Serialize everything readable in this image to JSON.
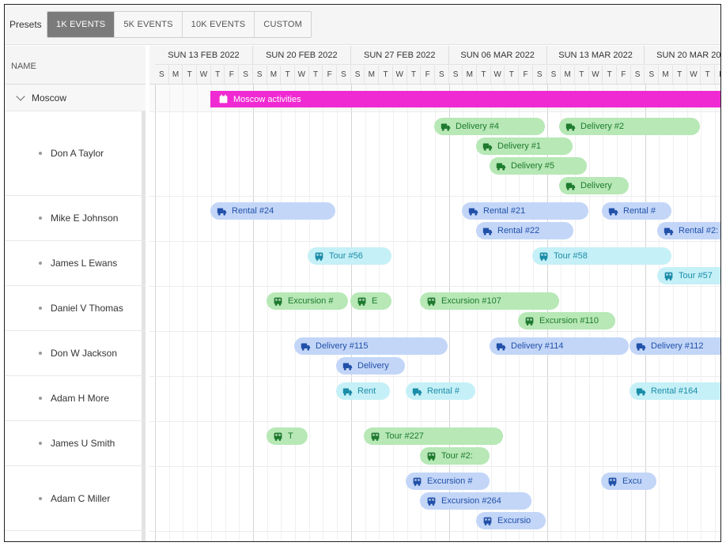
{
  "toolbar": {
    "label": "Presets",
    "presets": [
      "1K EVENTS",
      "5K EVENTS",
      "10K EVENTS",
      "CUSTOM"
    ],
    "active_preset": "1K EVENTS"
  },
  "grid": {
    "name_header": "NAME",
    "weeks": [
      "SUN 13 FEB 2022",
      "SUN 20 FEB 2022",
      "SUN 27 FEB 2022",
      "SUN 06 MAR 2022",
      "SUN 13 MAR 2022",
      "SUN 20 MAR 2022"
    ],
    "day_letters": [
      "S",
      "M",
      "T",
      "W",
      "T",
      "F",
      "S"
    ],
    "group": "Moscow",
    "resources": [
      "Don A Taylor",
      "Mike E Johnson",
      "James L Ewans",
      "Daniel V Thomas",
      "Don W Jackson",
      "Adam H More",
      "James U Smith",
      "Adam C Miller"
    ]
  },
  "colors": {
    "group_event": "#f02ad2",
    "delivery": "#b7e8b6",
    "rental": "#c3d6f8",
    "tour": "#c5f0f7"
  },
  "events": [
    {
      "name": "Moscow activities",
      "icon": "calendar-icon",
      "color": "magenta"
    },
    {
      "name": "Delivery #4",
      "icon": "truck-icon",
      "color": "green"
    },
    {
      "name": "Delivery #2",
      "icon": "truck-icon",
      "color": "green"
    },
    {
      "name": "Delivery #1",
      "icon": "truck-icon",
      "color": "green"
    },
    {
      "name": "Delivery #5",
      "icon": "truck-icon",
      "color": "green"
    },
    {
      "name": "Delivery",
      "icon": "truck-icon",
      "color": "green"
    },
    {
      "name": "Rental #24",
      "icon": "truck-icon",
      "color": "blue"
    },
    {
      "name": "Rental #21",
      "icon": "truck-icon",
      "color": "blue"
    },
    {
      "name": "Rental #",
      "icon": "truck-icon",
      "color": "blue"
    },
    {
      "name": "Rental #22",
      "icon": "truck-icon",
      "color": "blue"
    },
    {
      "name": "Rental #2:",
      "icon": "truck-icon",
      "color": "blue"
    },
    {
      "name": "Tour #56",
      "icon": "bus-icon",
      "color": "cyan"
    },
    {
      "name": "Tour #58",
      "icon": "bus-icon",
      "color": "cyan"
    },
    {
      "name": "Tour #57",
      "icon": "bus-icon",
      "color": "cyan"
    },
    {
      "name": "Excursion #",
      "icon": "bus-icon",
      "color": "green"
    },
    {
      "name": "E",
      "icon": "bus-icon",
      "color": "green"
    },
    {
      "name": "Excursion #107",
      "icon": "bus-icon",
      "color": "green"
    },
    {
      "name": "Excursion #110",
      "icon": "bus-icon",
      "color": "green"
    },
    {
      "name": "Delivery #115",
      "icon": "truck-icon",
      "color": "blue"
    },
    {
      "name": "Delivery #114",
      "icon": "truck-icon",
      "color": "blue"
    },
    {
      "name": "Delivery #112",
      "icon": "truck-icon",
      "color": "blue"
    },
    {
      "name": "Delivery",
      "icon": "truck-icon",
      "color": "blue"
    },
    {
      "name": "Rent",
      "icon": "truck-icon",
      "color": "cyan"
    },
    {
      "name": "Rental #",
      "icon": "truck-icon",
      "color": "cyan"
    },
    {
      "name": "Rental #164",
      "icon": "truck-icon",
      "color": "cyan"
    },
    {
      "name": "T",
      "icon": "bus-icon",
      "color": "green"
    },
    {
      "name": "Tour #227",
      "icon": "bus-icon",
      "color": "green"
    },
    {
      "name": "Tour #2:",
      "icon": "bus-icon",
      "color": "green"
    },
    {
      "name": "Excursion #",
      "icon": "bus-icon",
      "color": "blue"
    },
    {
      "name": "Excu",
      "icon": "bus-icon",
      "color": "blue"
    },
    {
      "name": "Excursion #264",
      "icon": "bus-icon",
      "color": "blue"
    },
    {
      "name": "Excursio",
      "icon": "bus-icon",
      "color": "blue"
    }
  ]
}
